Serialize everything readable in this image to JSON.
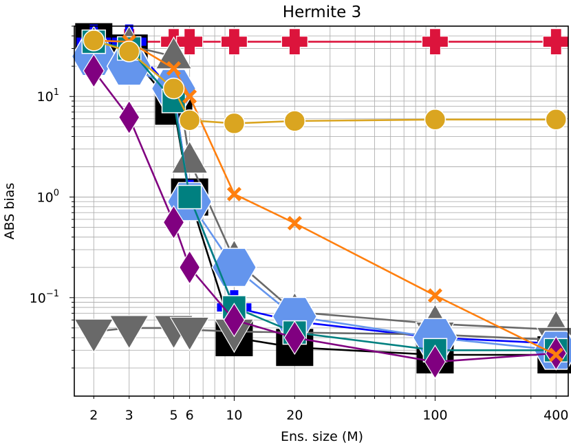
{
  "chart_data": {
    "type": "line",
    "title": "Hermite 3",
    "xlabel": "Ens. size (M)",
    "ylabel": "ABS bias",
    "xscale": "log",
    "yscale": "log",
    "xlim": [
      1.6,
      460
    ],
    "ylim": [
      0.0105,
      50
    ],
    "grid": true,
    "x": [
      2,
      3,
      5,
      6,
      10,
      20,
      100,
      400
    ],
    "xtick_labels": [
      "2",
      "3",
      "5",
      "6",
      "10",
      "20",
      "100",
      "400"
    ],
    "ytick_labels": [
      {
        "base": "10",
        "exp": "−1"
      },
      {
        "base": "10",
        "exp": "0"
      },
      {
        "base": "10",
        "exp": "1"
      }
    ],
    "series": [
      {
        "name": "crimson-plus",
        "color": "#dc143c",
        "marker": "plus",
        "values": [
          35,
          35,
          35,
          35,
          35,
          35,
          35,
          35
        ]
      },
      {
        "name": "black-square",
        "color": "#000000",
        "marker": "square",
        "values": [
          35,
          27,
          8,
          1.0,
          0.04,
          0.032,
          0.027,
          0.027
        ]
      },
      {
        "name": "blue-plus",
        "color": "#0000ff",
        "marker": "plus",
        "values": [
          35,
          35,
          11,
          1.0,
          0.08,
          0.058,
          0.04,
          0.035
        ]
      },
      {
        "name": "gray-triangle-up",
        "color": "#696969",
        "marker": "triangle-up",
        "values": [
          32,
          32,
          25,
          2.3,
          0.24,
          0.072,
          0.055,
          0.048
        ]
      },
      {
        "name": "gray-triangle-down",
        "color": "#696969",
        "marker": "triangle-down",
        "values": [
          0.046,
          0.05,
          0.05,
          0.048,
          0.046,
          0.045,
          0.043,
          0.038
        ]
      },
      {
        "name": "blue-hexagon",
        "color": "#6495ed",
        "marker": "hexagon",
        "values": [
          25,
          20,
          12,
          0.9,
          0.2,
          0.065,
          0.04,
          0.03
        ]
      },
      {
        "name": "teal-square",
        "color": "#008080",
        "marker": "square",
        "values": [
          35,
          30,
          9,
          1.0,
          0.08,
          0.045,
          0.03,
          0.03
        ]
      },
      {
        "name": "purple-diamond",
        "color": "#800080",
        "marker": "diamond",
        "values": [
          18,
          6.2,
          0.56,
          0.2,
          0.06,
          0.04,
          0.023,
          0.028
        ]
      },
      {
        "name": "orange-x",
        "color": "#ff7f0e",
        "marker": "x",
        "values": [
          36,
          35,
          19,
          10,
          1.07,
          0.55,
          0.105,
          0.027
        ]
      },
      {
        "name": "gold-circle",
        "color": "#daa520",
        "marker": "circle",
        "values": [
          36,
          28,
          12,
          5.8,
          5.4,
          5.7,
          5.9,
          5.9
        ]
      }
    ]
  }
}
